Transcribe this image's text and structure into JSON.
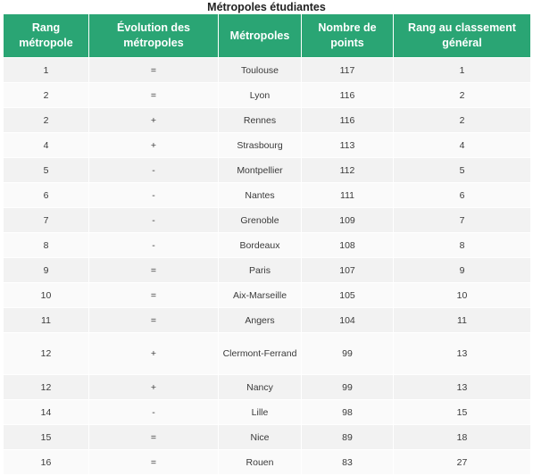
{
  "title": "Métropoles étudiantes",
  "table": {
    "headers": [
      "Rang métropole",
      "Évolution des métropoles",
      "Métropoles",
      "Nombre de points",
      "Rang au classement général"
    ],
    "rows": [
      [
        "1",
        "=",
        "Toulouse",
        "117",
        "1"
      ],
      [
        "2",
        "=",
        "Lyon",
        "116",
        "2"
      ],
      [
        "2",
        "+",
        "Rennes",
        "116",
        "2"
      ],
      [
        "4",
        "+",
        "Strasbourg",
        "113",
        "4"
      ],
      [
        "5",
        "-",
        "Montpellier",
        "112",
        "5"
      ],
      [
        "6",
        "-",
        "Nantes",
        "111",
        "6"
      ],
      [
        "7",
        "-",
        "Grenoble",
        "109",
        "7"
      ],
      [
        "8",
        "-",
        "Bordeaux",
        "108",
        "8"
      ],
      [
        "9",
        "=",
        "Paris",
        "107",
        "9"
      ],
      [
        "10",
        "=",
        "Aix-Marseille",
        "105",
        "10"
      ],
      [
        "11",
        "=",
        "Angers",
        "104",
        "11"
      ],
      [
        "12",
        "+",
        "Clermont-Ferrand",
        "99",
        "13"
      ],
      [
        "12",
        "+",
        "Nancy",
        "99",
        "13"
      ],
      [
        "14",
        "-",
        "Lille",
        "98",
        "15"
      ],
      [
        "15",
        "=",
        "Nice",
        "89",
        "18"
      ],
      [
        "16",
        "=",
        "Rouen",
        "83",
        "27"
      ]
    ]
  }
}
